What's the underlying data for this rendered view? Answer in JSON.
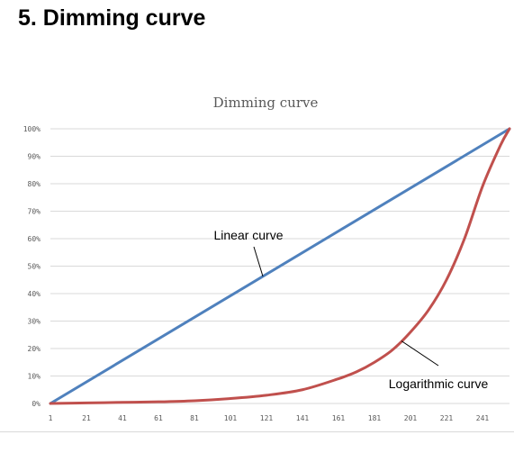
{
  "page": {
    "heading": "5. Dimming curve"
  },
  "chart_data": {
    "type": "line",
    "title": "Dimming curve",
    "xlabel": "",
    "ylabel": "",
    "x_ticks": [
      "1",
      "21",
      "41",
      "61",
      "81",
      "101",
      "121",
      "141",
      "161",
      "181",
      "201",
      "221",
      "241"
    ],
    "y_ticks": [
      "0%",
      "10%",
      "20%",
      "30%",
      "40%",
      "50%",
      "60%",
      "70%",
      "80%",
      "90%",
      "100%"
    ],
    "xlim": [
      1,
      256
    ],
    "ylim": [
      0,
      100
    ],
    "grid": "horizontal",
    "legend": "none",
    "series": [
      {
        "name": "Linear curve",
        "color": "#4f81bd",
        "x": [
          1,
          256
        ],
        "y": [
          0,
          100
        ]
      },
      {
        "name": "Logarithmic curve",
        "color": "#c0504d",
        "x": [
          1,
          21,
          41,
          61,
          81,
          101,
          121,
          141,
          161,
          171,
          181,
          191,
          201,
          211,
          221,
          231,
          241,
          251,
          256
        ],
        "y": [
          0,
          0.2,
          0.4,
          0.6,
          1.0,
          1.8,
          3.0,
          5.0,
          9.0,
          11.5,
          15.0,
          19.5,
          26.0,
          34.0,
          45.0,
          60.0,
          79.0,
          94.0,
          100
        ]
      }
    ],
    "annotations": [
      {
        "text": "Linear curve",
        "series": 0,
        "target_x": 119
      },
      {
        "text": "Logarithmic curve",
        "series": 1,
        "target_x": 196
      }
    ]
  }
}
